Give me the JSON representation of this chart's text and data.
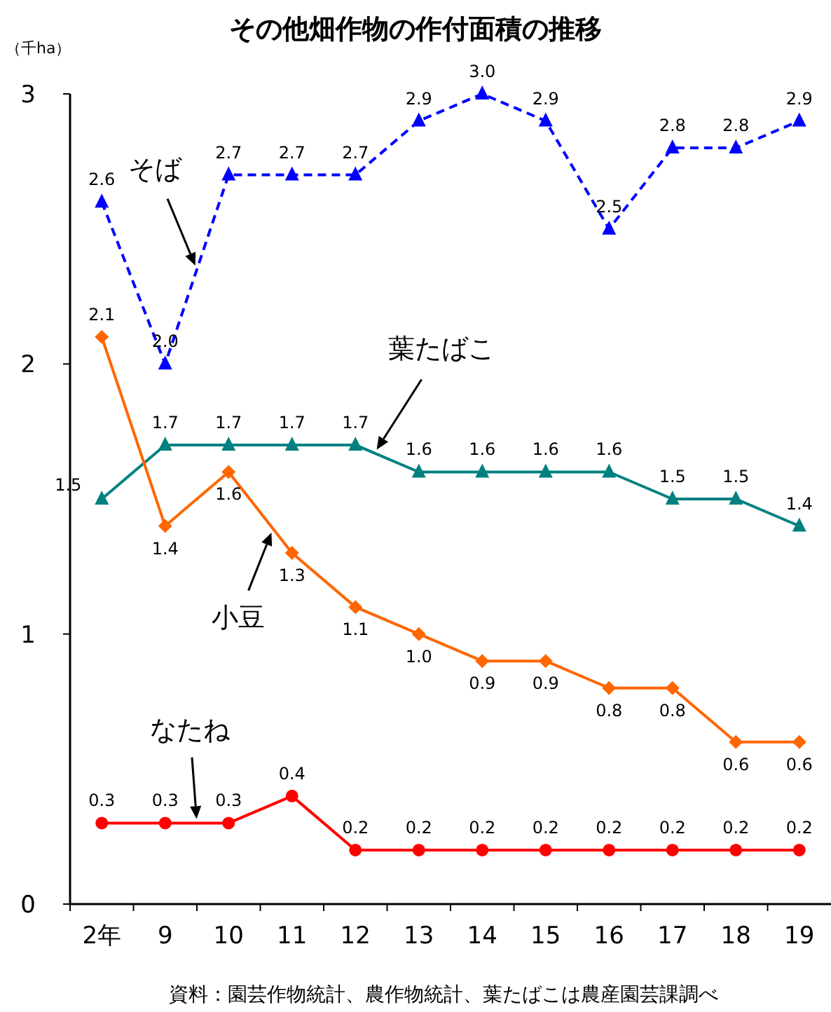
{
  "chart_data": {
    "type": "line",
    "title": "その他畑作物の作付面積の推移",
    "ylabel": "（千ha）",
    "categories": [
      "2年",
      "9",
      "10",
      "11",
      "12",
      "13",
      "14",
      "15",
      "16",
      "17",
      "18",
      "19"
    ],
    "series": [
      {
        "name": "そば",
        "color": "#0000ff",
        "marker": "triangle",
        "line_style": "dashed",
        "values": [
          2.6,
          2.0,
          2.7,
          2.7,
          2.7,
          2.9,
          3.0,
          2.9,
          2.5,
          2.8,
          2.8,
          2.9
        ],
        "value_labels": [
          "2.6",
          "2.0",
          "2.7",
          "2.7",
          "2.7",
          "2.9",
          "3.0",
          "2.9",
          "2.5",
          "2.8",
          "2.8",
          "2.9"
        ]
      },
      {
        "name": "葉たばこ",
        "color": "#008080",
        "marker": "triangle",
        "line_style": "solid",
        "values": [
          1.5,
          1.7,
          1.7,
          1.7,
          1.7,
          1.6,
          1.6,
          1.6,
          1.6,
          1.5,
          1.5,
          1.4
        ],
        "value_labels": [
          "1.5",
          "1.7",
          "1.7",
          "1.7",
          "1.7",
          "1.6",
          "1.6",
          "1.6",
          "1.6",
          "1.5",
          "1.5",
          "1.4"
        ]
      },
      {
        "name": "小豆",
        "color": "#ff6600",
        "marker": "diamond",
        "line_style": "solid",
        "values": [
          2.1,
          1.4,
          1.6,
          1.3,
          1.1,
          1.0,
          0.9,
          0.9,
          0.8,
          0.8,
          0.6,
          0.6
        ],
        "value_labels": [
          "2.1",
          "1.4",
          "1.6",
          "1.3",
          "1.1",
          "1.0",
          "0.9",
          "0.9",
          "0.8",
          "0.8",
          "0.6",
          "0.6"
        ]
      },
      {
        "name": "なたね",
        "color": "#ff0000",
        "marker": "circle",
        "line_style": "solid",
        "values": [
          0.3,
          0.3,
          0.3,
          0.4,
          0.2,
          0.2,
          0.2,
          0.2,
          0.2,
          0.2,
          0.2,
          0.2
        ],
        "value_labels": [
          "0.3",
          "0.3",
          "0.3",
          "0.4",
          "0.2",
          "0.2",
          "0.2",
          "0.2",
          "0.2",
          "0.2",
          "0.2",
          "0.2"
        ]
      }
    ],
    "annotations": [
      "資料：園芸作物統計、農作物統計、葉たばこは農産園芸課調べ"
    ],
    "ylim": [
      0,
      3
    ],
    "yticks": [
      0,
      1,
      2,
      3
    ],
    "grid": false
  }
}
